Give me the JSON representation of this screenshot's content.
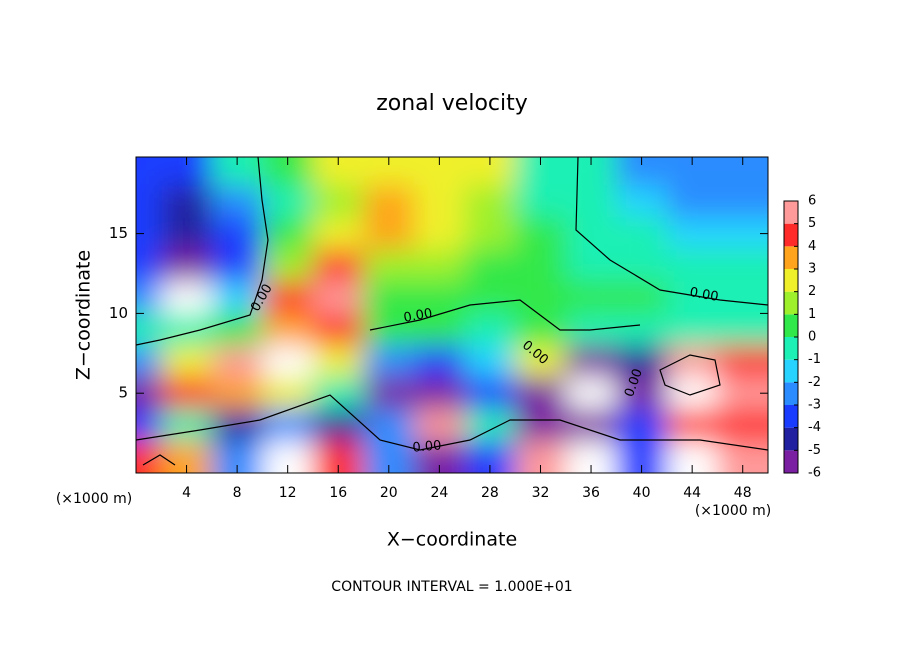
{
  "chart_data": {
    "type": "heatmap",
    "title": "zonal velocity",
    "xlabel": "X−coordinate",
    "ylabel": "Z−coordinate",
    "x_unit_left": "(×1000 m)",
    "x_unit_right": "(×1000 m)",
    "footer": "CONTOUR INTERVAL = 1.000E+01",
    "xlim": [
      0,
      50
    ],
    "ylim": [
      0,
      19.8
    ],
    "xticks": [
      4,
      8,
      12,
      16,
      20,
      24,
      28,
      32,
      36,
      40,
      44,
      48
    ],
    "yticks": [
      5,
      10,
      15
    ],
    "x": [
      0,
      4,
      8,
      12,
      16,
      20,
      24,
      28,
      32,
      36,
      40,
      44,
      48
    ],
    "y": [
      19,
      17,
      15,
      13,
      11,
      9,
      7,
      5,
      3,
      1
    ],
    "values": [
      [
        -3,
        -3,
        0,
        1,
        3,
        3,
        3,
        3,
        0,
        0,
        -2,
        -2,
        -2
      ],
      [
        -3,
        -4,
        -2,
        0,
        2,
        4,
        3,
        2,
        0,
        0,
        -1,
        -2,
        -2
      ],
      [
        -3,
        -4,
        -3,
        1,
        3,
        4,
        3,
        2,
        1,
        0,
        0,
        -1,
        -1
      ],
      [
        -3,
        -5,
        -3,
        2,
        5,
        2,
        2,
        1,
        1,
        0,
        0,
        0,
        0
      ],
      [
        -2,
        -7,
        -1,
        5,
        6,
        1,
        1,
        1,
        1,
        1,
        1,
        0,
        0
      ],
      [
        0,
        0,
        1,
        4,
        5,
        1,
        1,
        0,
        1,
        0,
        0,
        0,
        0
      ],
      [
        -2,
        3,
        6,
        7,
        3,
        -2,
        -3,
        -1,
        3,
        -5,
        -4,
        6,
        5
      ],
      [
        -5,
        5,
        4,
        3,
        0,
        -5,
        -5,
        -3,
        -5,
        7,
        -5,
        7,
        6
      ],
      [
        -3,
        0,
        -4,
        -2,
        -4,
        -2,
        6,
        -0.5,
        -5,
        -5,
        -3,
        5,
        5
      ],
      [
        5,
        4,
        -2,
        7,
        5,
        -2,
        -5,
        -3,
        6,
        7,
        -3,
        7,
        6
      ]
    ],
    "colorbar": {
      "levels": [
        -6,
        -5,
        -4,
        -3,
        -2,
        -1,
        0,
        1,
        2,
        3,
        4,
        5,
        6
      ],
      "colors": [
        "#7b1fa2",
        "#2020a0",
        "#1a3cff",
        "#2a8cff",
        "#28d4ff",
        "#1cf0b4",
        "#30e84a",
        "#9ef02c",
        "#f0f02a",
        "#ffa41c",
        "#ff2a2a",
        "#ff9a9a"
      ]
    },
    "annotations": [
      "0.00",
      "0.00",
      "0.00",
      "0.00",
      "0.00",
      "0.00"
    ]
  }
}
